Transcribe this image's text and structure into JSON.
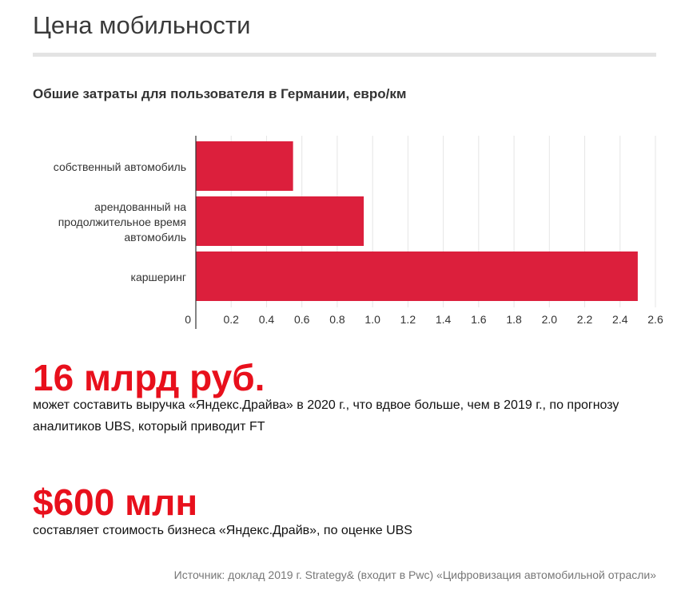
{
  "title": "Цена мобильности",
  "chart_data": {
    "type": "bar",
    "orientation": "horizontal",
    "title": "Обшие затраты для пользователя в Германии, евро/км",
    "categories": [
      [
        "собственный автомобиль"
      ],
      [
        "арендованный на",
        "продолжительное время",
        "автомобиль"
      ],
      [
        "каршеринг"
      ]
    ],
    "values": [
      0.55,
      0.95,
      2.5
    ],
    "xticks": [
      "0",
      "0.2",
      "0.4",
      "0.6",
      "0.8",
      "1.0",
      "1.2",
      "1.4",
      "1.6",
      "1.8",
      "2.0",
      "2.2",
      "2.4",
      "2.6"
    ],
    "xlim": [
      0,
      2.6
    ],
    "grid": true,
    "bar_color": "#dc1f3c"
  },
  "stats": [
    {
      "value": "16 млрд руб.",
      "description": "может составить выручка «Яндекс.Драйва» в 2020 г., что вдвое больше, чем в 2019 г., по прогнозу аналитиков UBS, который приводит FT"
    },
    {
      "value": "$600 млн",
      "description": "составляет стоимость бизнеса «Яндекс.Драйв», по оценке UBS"
    }
  ],
  "source": "Источник: доклад 2019 г. Strategy& (входит в Pwc) «Цифровизация автомобильной отрасли»"
}
